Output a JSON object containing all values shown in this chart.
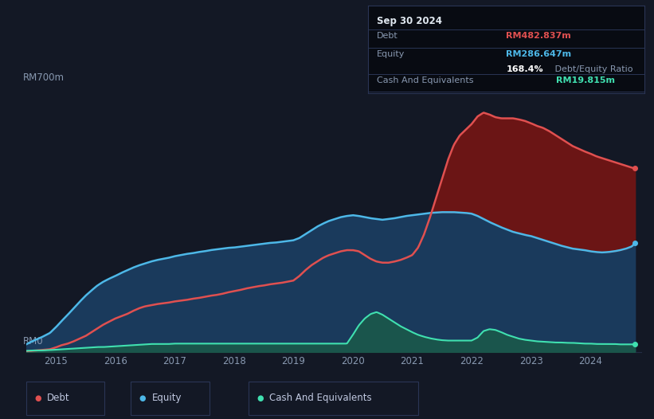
{
  "bg_color": "#131825",
  "plot_bg_color": "#131825",
  "title": "Sep 30 2024",
  "ylabel_rm700": "RM700m",
  "ylabel_rm0": "RM0",
  "ylim": [
    0,
    750
  ],
  "xlim": [
    2014.5,
    2024.85
  ],
  "debt_color": "#e05050",
  "equity_color": "#4db8e8",
  "cash_color": "#40e0b0",
  "debt_fill_color": "#6b1515",
  "equity_fill_color": "#1a3a5c",
  "cash_fill_color": "#1a5a4a",
  "grid_color": "#252d45",
  "tooltip_bg": "#080b12",
  "tooltip_border": "#2a3050",
  "debt_series": [
    [
      2014.5,
      2
    ],
    [
      2014.6,
      3
    ],
    [
      2014.75,
      5
    ],
    [
      2014.9,
      7
    ],
    [
      2015.0,
      12
    ],
    [
      2015.1,
      18
    ],
    [
      2015.2,
      22
    ],
    [
      2015.3,
      28
    ],
    [
      2015.4,
      35
    ],
    [
      2015.5,
      42
    ],
    [
      2015.6,
      52
    ],
    [
      2015.7,
      62
    ],
    [
      2015.8,
      72
    ],
    [
      2015.9,
      80
    ],
    [
      2016.0,
      88
    ],
    [
      2016.1,
      94
    ],
    [
      2016.2,
      100
    ],
    [
      2016.3,
      108
    ],
    [
      2016.4,
      115
    ],
    [
      2016.5,
      120
    ],
    [
      2016.6,
      123
    ],
    [
      2016.7,
      126
    ],
    [
      2016.8,
      128
    ],
    [
      2016.9,
      130
    ],
    [
      2017.0,
      133
    ],
    [
      2017.1,
      135
    ],
    [
      2017.2,
      137
    ],
    [
      2017.3,
      140
    ],
    [
      2017.4,
      142
    ],
    [
      2017.5,
      145
    ],
    [
      2017.6,
      148
    ],
    [
      2017.7,
      150
    ],
    [
      2017.8,
      153
    ],
    [
      2017.9,
      157
    ],
    [
      2018.0,
      160
    ],
    [
      2018.1,
      163
    ],
    [
      2018.2,
      167
    ],
    [
      2018.3,
      170
    ],
    [
      2018.4,
      173
    ],
    [
      2018.5,
      175
    ],
    [
      2018.6,
      178
    ],
    [
      2018.7,
      180
    ],
    [
      2018.8,
      182
    ],
    [
      2018.9,
      185
    ],
    [
      2019.0,
      188
    ],
    [
      2019.1,
      200
    ],
    [
      2019.2,
      215
    ],
    [
      2019.3,
      228
    ],
    [
      2019.4,
      238
    ],
    [
      2019.5,
      248
    ],
    [
      2019.6,
      255
    ],
    [
      2019.7,
      260
    ],
    [
      2019.8,
      265
    ],
    [
      2019.9,
      268
    ],
    [
      2020.0,
      268
    ],
    [
      2020.1,
      265
    ],
    [
      2020.2,
      255
    ],
    [
      2020.3,
      245
    ],
    [
      2020.4,
      238
    ],
    [
      2020.5,
      235
    ],
    [
      2020.6,
      235
    ],
    [
      2020.7,
      238
    ],
    [
      2020.8,
      242
    ],
    [
      2020.9,
      248
    ],
    [
      2021.0,
      255
    ],
    [
      2021.1,
      275
    ],
    [
      2021.2,
      310
    ],
    [
      2021.3,
      355
    ],
    [
      2021.4,
      405
    ],
    [
      2021.5,
      455
    ],
    [
      2021.6,
      505
    ],
    [
      2021.7,
      545
    ],
    [
      2021.8,
      570
    ],
    [
      2021.9,
      585
    ],
    [
      2022.0,
      600
    ],
    [
      2022.1,
      620
    ],
    [
      2022.2,
      630
    ],
    [
      2022.3,
      625
    ],
    [
      2022.4,
      618
    ],
    [
      2022.5,
      615
    ],
    [
      2022.6,
      615
    ],
    [
      2022.7,
      615
    ],
    [
      2022.8,
      612
    ],
    [
      2022.9,
      608
    ],
    [
      2023.0,
      602
    ],
    [
      2023.1,
      595
    ],
    [
      2023.2,
      590
    ],
    [
      2023.3,
      582
    ],
    [
      2023.4,
      572
    ],
    [
      2023.5,
      562
    ],
    [
      2023.6,
      552
    ],
    [
      2023.7,
      542
    ],
    [
      2023.8,
      535
    ],
    [
      2023.9,
      528
    ],
    [
      2024.0,
      522
    ],
    [
      2024.1,
      515
    ],
    [
      2024.2,
      510
    ],
    [
      2024.3,
      505
    ],
    [
      2024.4,
      500
    ],
    [
      2024.5,
      495
    ],
    [
      2024.6,
      490
    ],
    [
      2024.7,
      485
    ],
    [
      2024.75,
      483
    ]
  ],
  "equity_series": [
    [
      2014.5,
      20
    ],
    [
      2014.6,
      28
    ],
    [
      2014.75,
      38
    ],
    [
      2014.9,
      50
    ],
    [
      2015.0,
      65
    ],
    [
      2015.1,
      82
    ],
    [
      2015.2,
      98
    ],
    [
      2015.3,
      115
    ],
    [
      2015.4,
      132
    ],
    [
      2015.5,
      148
    ],
    [
      2015.6,
      162
    ],
    [
      2015.7,
      175
    ],
    [
      2015.8,
      185
    ],
    [
      2015.9,
      193
    ],
    [
      2016.0,
      200
    ],
    [
      2016.1,
      208
    ],
    [
      2016.2,
      215
    ],
    [
      2016.3,
      222
    ],
    [
      2016.4,
      228
    ],
    [
      2016.5,
      233
    ],
    [
      2016.6,
      238
    ],
    [
      2016.7,
      242
    ],
    [
      2016.8,
      245
    ],
    [
      2016.9,
      248
    ],
    [
      2017.0,
      252
    ],
    [
      2017.1,
      255
    ],
    [
      2017.2,
      258
    ],
    [
      2017.3,
      260
    ],
    [
      2017.4,
      263
    ],
    [
      2017.5,
      265
    ],
    [
      2017.6,
      268
    ],
    [
      2017.7,
      270
    ],
    [
      2017.8,
      272
    ],
    [
      2017.9,
      274
    ],
    [
      2018.0,
      275
    ],
    [
      2018.1,
      277
    ],
    [
      2018.2,
      279
    ],
    [
      2018.3,
      281
    ],
    [
      2018.4,
      283
    ],
    [
      2018.5,
      285
    ],
    [
      2018.6,
      287
    ],
    [
      2018.7,
      288
    ],
    [
      2018.8,
      290
    ],
    [
      2018.9,
      292
    ],
    [
      2019.0,
      294
    ],
    [
      2019.1,
      300
    ],
    [
      2019.2,
      310
    ],
    [
      2019.3,
      320
    ],
    [
      2019.4,
      330
    ],
    [
      2019.5,
      338
    ],
    [
      2019.6,
      345
    ],
    [
      2019.7,
      350
    ],
    [
      2019.8,
      355
    ],
    [
      2019.9,
      358
    ],
    [
      2020.0,
      360
    ],
    [
      2020.1,
      358
    ],
    [
      2020.2,
      355
    ],
    [
      2020.3,
      352
    ],
    [
      2020.4,
      350
    ],
    [
      2020.5,
      348
    ],
    [
      2020.6,
      350
    ],
    [
      2020.7,
      352
    ],
    [
      2020.8,
      355
    ],
    [
      2020.9,
      358
    ],
    [
      2021.0,
      360
    ],
    [
      2021.1,
      362
    ],
    [
      2021.2,
      364
    ],
    [
      2021.3,
      366
    ],
    [
      2021.4,
      367
    ],
    [
      2021.5,
      368
    ],
    [
      2021.6,
      368
    ],
    [
      2021.7,
      368
    ],
    [
      2021.8,
      367
    ],
    [
      2021.9,
      366
    ],
    [
      2022.0,
      364
    ],
    [
      2022.1,
      358
    ],
    [
      2022.2,
      350
    ],
    [
      2022.3,
      342
    ],
    [
      2022.4,
      335
    ],
    [
      2022.5,
      328
    ],
    [
      2022.6,
      322
    ],
    [
      2022.7,
      316
    ],
    [
      2022.8,
      312
    ],
    [
      2022.9,
      308
    ],
    [
      2023.0,
      305
    ],
    [
      2023.1,
      300
    ],
    [
      2023.2,
      295
    ],
    [
      2023.3,
      290
    ],
    [
      2023.4,
      285
    ],
    [
      2023.5,
      280
    ],
    [
      2023.6,
      276
    ],
    [
      2023.7,
      272
    ],
    [
      2023.8,
      270
    ],
    [
      2023.9,
      268
    ],
    [
      2024.0,
      265
    ],
    [
      2024.1,
      263
    ],
    [
      2024.2,
      262
    ],
    [
      2024.3,
      263
    ],
    [
      2024.4,
      265
    ],
    [
      2024.5,
      268
    ],
    [
      2024.6,
      272
    ],
    [
      2024.7,
      278
    ],
    [
      2024.75,
      287
    ]
  ],
  "cash_series": [
    [
      2014.5,
      3
    ],
    [
      2014.6,
      4
    ],
    [
      2014.75,
      4
    ],
    [
      2014.9,
      5
    ],
    [
      2015.0,
      6
    ],
    [
      2015.1,
      7
    ],
    [
      2015.2,
      8
    ],
    [
      2015.3,
      9
    ],
    [
      2015.4,
      10
    ],
    [
      2015.5,
      11
    ],
    [
      2015.6,
      12
    ],
    [
      2015.7,
      13
    ],
    [
      2015.8,
      13
    ],
    [
      2015.9,
      14
    ],
    [
      2016.0,
      15
    ],
    [
      2016.1,
      16
    ],
    [
      2016.2,
      17
    ],
    [
      2016.3,
      18
    ],
    [
      2016.4,
      19
    ],
    [
      2016.5,
      20
    ],
    [
      2016.6,
      21
    ],
    [
      2016.7,
      21
    ],
    [
      2016.8,
      21
    ],
    [
      2016.9,
      21
    ],
    [
      2017.0,
      22
    ],
    [
      2017.1,
      22
    ],
    [
      2017.2,
      22
    ],
    [
      2017.3,
      22
    ],
    [
      2017.4,
      22
    ],
    [
      2017.5,
      22
    ],
    [
      2017.6,
      22
    ],
    [
      2017.7,
      22
    ],
    [
      2017.8,
      22
    ],
    [
      2017.9,
      22
    ],
    [
      2018.0,
      22
    ],
    [
      2018.1,
      22
    ],
    [
      2018.2,
      22
    ],
    [
      2018.3,
      22
    ],
    [
      2018.4,
      22
    ],
    [
      2018.5,
      22
    ],
    [
      2018.6,
      22
    ],
    [
      2018.7,
      22
    ],
    [
      2018.8,
      22
    ],
    [
      2018.9,
      22
    ],
    [
      2019.0,
      22
    ],
    [
      2019.1,
      22
    ],
    [
      2019.2,
      22
    ],
    [
      2019.3,
      22
    ],
    [
      2019.4,
      22
    ],
    [
      2019.5,
      22
    ],
    [
      2019.6,
      22
    ],
    [
      2019.7,
      22
    ],
    [
      2019.8,
      22
    ],
    [
      2019.9,
      22
    ],
    [
      2020.0,
      45
    ],
    [
      2020.1,
      70
    ],
    [
      2020.2,
      88
    ],
    [
      2020.3,
      100
    ],
    [
      2020.4,
      105
    ],
    [
      2020.5,
      98
    ],
    [
      2020.6,
      88
    ],
    [
      2020.7,
      78
    ],
    [
      2020.8,
      68
    ],
    [
      2020.9,
      60
    ],
    [
      2021.0,
      52
    ],
    [
      2021.1,
      45
    ],
    [
      2021.2,
      40
    ],
    [
      2021.3,
      36
    ],
    [
      2021.4,
      33
    ],
    [
      2021.5,
      31
    ],
    [
      2021.6,
      30
    ],
    [
      2021.7,
      30
    ],
    [
      2021.8,
      30
    ],
    [
      2021.9,
      30
    ],
    [
      2022.0,
      30
    ],
    [
      2022.1,
      38
    ],
    [
      2022.2,
      55
    ],
    [
      2022.3,
      60
    ],
    [
      2022.4,
      58
    ],
    [
      2022.5,
      52
    ],
    [
      2022.6,
      45
    ],
    [
      2022.7,
      40
    ],
    [
      2022.8,
      35
    ],
    [
      2022.9,
      32
    ],
    [
      2023.0,
      30
    ],
    [
      2023.1,
      28
    ],
    [
      2023.2,
      27
    ],
    [
      2023.3,
      26
    ],
    [
      2023.4,
      25
    ],
    [
      2023.5,
      25
    ],
    [
      2023.6,
      24
    ],
    [
      2023.7,
      24
    ],
    [
      2023.8,
      23
    ],
    [
      2023.9,
      22
    ],
    [
      2024.0,
      22
    ],
    [
      2024.1,
      21
    ],
    [
      2024.2,
      21
    ],
    [
      2024.3,
      21
    ],
    [
      2024.4,
      21
    ],
    [
      2024.5,
      20
    ],
    [
      2024.6,
      20
    ],
    [
      2024.7,
      20
    ],
    [
      2024.75,
      20
    ]
  ],
  "legend_items": [
    {
      "label": "Debt",
      "color": "#e05050"
    },
    {
      "label": "Equity",
      "color": "#4db8e8"
    },
    {
      "label": "Cash And Equivalents",
      "color": "#40e0b0"
    }
  ],
  "tooltip": {
    "title": "Sep 30 2024",
    "rows": [
      {
        "label": "Debt",
        "value": "RM482.837m",
        "value_color": "#e05050"
      },
      {
        "label": "Equity",
        "value": "RM286.647m",
        "value_color": "#4db8e8"
      },
      {
        "label": "",
        "value": "168.4%",
        "suffix": " Debt/Equity Ratio",
        "value_color": "#ffffff"
      },
      {
        "label": "Cash And Equivalents",
        "value": "RM19.815m",
        "value_color": "#40e0b0"
      }
    ]
  }
}
